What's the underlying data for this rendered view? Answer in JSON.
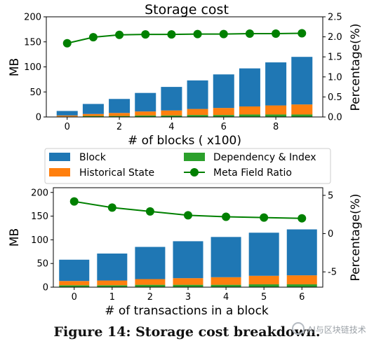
{
  "colors": {
    "block": "#1f77b4",
    "historical": "#ff7f0e",
    "dependency": "#2ca02c",
    "ratio": "#008000"
  },
  "legend": {
    "block": "Block",
    "historical": "Historical State",
    "dependency": "Dependency & Index",
    "ratio": "Meta Field Ratio"
  },
  "caption": "Figure 14: Storage cost breakdown.",
  "watermark": "AI与区块链技术",
  "chart_data": [
    {
      "type": "bar",
      "title": "Storage cost",
      "xlabel": "# of blocks ( x100)",
      "ylabel": "MB",
      "ylabel_right": "Percentage(%)",
      "x": [
        0,
        1,
        2,
        3,
        4,
        5,
        6,
        7,
        8,
        9
      ],
      "xticks": [
        0,
        2,
        4,
        6,
        8
      ],
      "xlim": [
        -0.8,
        9.8
      ],
      "ylim": [
        0,
        200
      ],
      "yticks": [
        0,
        50,
        100,
        150,
        200
      ],
      "ylim_right": [
        0,
        2.5
      ],
      "yticks_right": [
        "0.0",
        "0.5",
        "1.0",
        "1.5",
        "2.0",
        "2.5"
      ],
      "series": [
        {
          "name": "Block",
          "values": [
            9,
            20,
            28,
            37,
            47,
            57,
            67,
            76,
            86,
            95
          ]
        },
        {
          "name": "Historical State",
          "values": [
            2,
            4,
            6,
            8,
            10,
            12,
            14,
            16,
            18,
            20
          ]
        },
        {
          "name": "Dependency & Index",
          "values": [
            1,
            2,
            2,
            3,
            3,
            4,
            4,
            5,
            5,
            5
          ]
        },
        {
          "name": "Meta Field Ratio",
          "axis": "right",
          "values": [
            1.84,
            1.99,
            2.05,
            2.06,
            2.06,
            2.07,
            2.07,
            2.08,
            2.08,
            2.09
          ]
        }
      ]
    },
    {
      "type": "bar",
      "title": "",
      "xlabel": "# of transactions in a block",
      "ylabel": "MB",
      "ylabel_right": "Percentage(%)",
      "x": [
        0,
        1,
        2,
        3,
        4,
        5,
        6
      ],
      "xticks": [
        0,
        1,
        2,
        3,
        4,
        5,
        6
      ],
      "xlim": [
        -0.55,
        6.55
      ],
      "ylim": [
        0,
        210
      ],
      "yticks": [
        0,
        50,
        100,
        150,
        200
      ],
      "ylim_right": [
        -7,
        6
      ],
      "yticks_right": [
        -5,
        0,
        5
      ],
      "series": [
        {
          "name": "Block",
          "values": [
            45,
            57,
            68,
            78,
            85,
            91,
            97
          ]
        },
        {
          "name": "Historical State",
          "values": [
            9,
            10,
            12,
            14,
            16,
            18,
            19
          ]
        },
        {
          "name": "Dependency & Index",
          "values": [
            4,
            4,
            5,
            5,
            5,
            6,
            6
          ]
        },
        {
          "name": "Meta Field Ratio",
          "axis": "right",
          "values": [
            4.2,
            3.4,
            2.9,
            2.4,
            2.2,
            2.1,
            2.0
          ]
        }
      ]
    }
  ]
}
